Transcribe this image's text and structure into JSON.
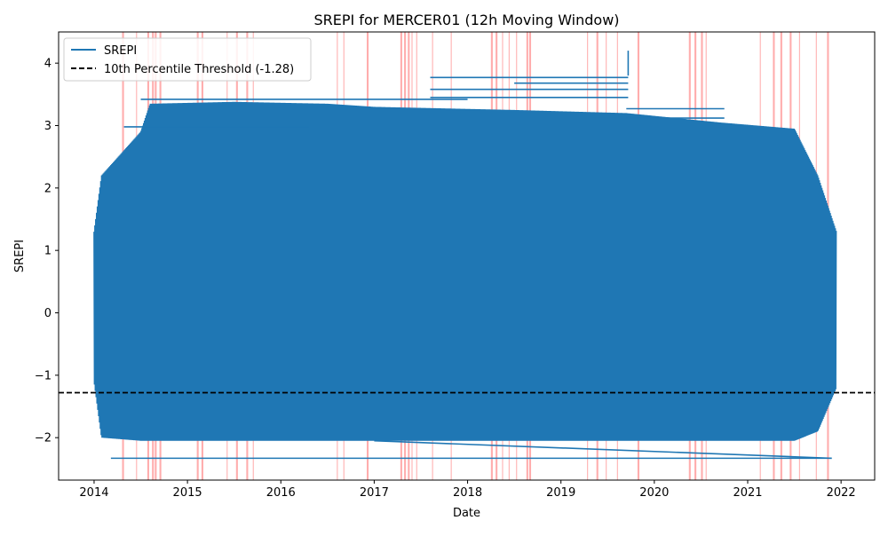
{
  "chart_data": {
    "type": "line",
    "title": "SREPI for MERCER01 (12h Moving Window)",
    "xlabel": "Date",
    "ylabel": "SREPI",
    "xlim": [
      2013.62,
      2022.36
    ],
    "ylim": [
      -2.68,
      4.5
    ],
    "x_ticks": [
      2014,
      2015,
      2016,
      2017,
      2018,
      2019,
      2020,
      2021,
      2022
    ],
    "x_tick_labels": [
      "2014",
      "2015",
      "2016",
      "2017",
      "2018",
      "2019",
      "2020",
      "2021",
      "2022"
    ],
    "y_ticks": [
      -2,
      -1,
      0,
      1,
      2,
      3,
      4
    ],
    "y_tick_labels": [
      "−2",
      "−1",
      "0",
      "1",
      "2",
      "3",
      "4"
    ],
    "grid": false,
    "legend": {
      "placement": "upper-left",
      "entries": [
        "SREPI",
        "10th Percentile Threshold (-1.28)"
      ]
    },
    "colors": {
      "series": "#1f77b4",
      "threshold": "#000000",
      "drought_band": "#ff0000"
    },
    "series": [
      {
        "name": "SREPI",
        "envelope": [
          {
            "x": 2014.0,
            "low": -1.1,
            "high": 1.3
          },
          {
            "x": 2014.08,
            "low": -2.0,
            "high": 2.2
          },
          {
            "x": 2014.5,
            "low": -2.05,
            "high": 2.9
          },
          {
            "x": 2014.6,
            "low": -2.05,
            "high": 3.35
          },
          {
            "x": 2015.5,
            "low": -2.05,
            "high": 3.38
          },
          {
            "x": 2016.5,
            "low": -2.05,
            "high": 3.35
          },
          {
            "x": 2017.0,
            "low": -2.05,
            "high": 3.3
          },
          {
            "x": 2018.5,
            "low": -2.05,
            "high": 3.25
          },
          {
            "x": 2019.7,
            "low": -2.05,
            "high": 3.2
          },
          {
            "x": 2020.7,
            "low": -2.05,
            "high": 3.05
          },
          {
            "x": 2021.5,
            "low": -2.05,
            "high": 2.95
          },
          {
            "x": 2021.75,
            "low": -1.9,
            "high": 2.2
          },
          {
            "x": 2021.95,
            "low": -1.2,
            "high": 1.3
          }
        ],
        "horizontal_lines": [
          {
            "x1": 2017.6,
            "x2": 2019.72,
            "y": 3.77
          },
          {
            "x1": 2017.6,
            "x2": 2019.72,
            "y": 3.58
          },
          {
            "x1": 2018.5,
            "x2": 2019.72,
            "y": 3.68
          },
          {
            "x1": 2017.6,
            "x2": 2019.72,
            "y": 3.45
          },
          {
            "x1": 2014.5,
            "x2": 2018.0,
            "y": 3.42
          },
          {
            "x1": 2019.7,
            "x2": 2020.75,
            "y": 3.27
          },
          {
            "x1": 2019.7,
            "x2": 2020.75,
            "y": 3.12
          },
          {
            "x1": 2014.32,
            "x2": 2016.3,
            "y": 2.98
          },
          {
            "x1": 2014.18,
            "x2": 2021.9,
            "y": -2.33
          }
        ],
        "extra_segments": [
          {
            "x1": 2019.72,
            "y1": 3.8,
            "x2": 2019.72,
            "y2": 4.2
          },
          {
            "x1": 2017.0,
            "y1": -2.05,
            "x2": 2021.9,
            "y2": -2.33
          }
        ]
      },
      {
        "name": "10th Percentile Threshold (-1.28)",
        "style": "dashed",
        "y": -1.28
      }
    ],
    "shaded_periods": [
      {
        "x": 2014.3,
        "width": 0.02
      },
      {
        "x": 2014.45,
        "width": 0.01
      },
      {
        "x": 2014.57,
        "width": 0.02
      },
      {
        "x": 2014.62,
        "width": 0.02
      },
      {
        "x": 2014.65,
        "width": 0.02
      },
      {
        "x": 2014.7,
        "width": 0.02
      },
      {
        "x": 2015.1,
        "width": 0.02
      },
      {
        "x": 2015.15,
        "width": 0.02
      },
      {
        "x": 2015.42,
        "width": 0.01
      },
      {
        "x": 2015.52,
        "width": 0.02
      },
      {
        "x": 2015.63,
        "width": 0.02
      },
      {
        "x": 2015.7,
        "width": 0.01
      },
      {
        "x": 2016.6,
        "width": 0.01
      },
      {
        "x": 2016.67,
        "width": 0.01
      },
      {
        "x": 2016.92,
        "width": 0.02
      },
      {
        "x": 2017.28,
        "width": 0.02
      },
      {
        "x": 2017.32,
        "width": 0.02
      },
      {
        "x": 2017.36,
        "width": 0.02
      },
      {
        "x": 2017.4,
        "width": 0.01
      },
      {
        "x": 2017.45,
        "width": 0.01
      },
      {
        "x": 2017.62,
        "width": 0.01
      },
      {
        "x": 2017.82,
        "width": 0.01
      },
      {
        "x": 2018.25,
        "width": 0.02
      },
      {
        "x": 2018.3,
        "width": 0.02
      },
      {
        "x": 2018.37,
        "width": 0.01
      },
      {
        "x": 2018.44,
        "width": 0.01
      },
      {
        "x": 2018.52,
        "width": 0.01
      },
      {
        "x": 2018.63,
        "width": 0.02
      },
      {
        "x": 2018.66,
        "width": 0.02
      },
      {
        "x": 2019.28,
        "width": 0.01
      },
      {
        "x": 2019.38,
        "width": 0.02
      },
      {
        "x": 2019.48,
        "width": 0.01
      },
      {
        "x": 2019.6,
        "width": 0.01
      },
      {
        "x": 2019.82,
        "width": 0.02
      },
      {
        "x": 2020.37,
        "width": 0.02
      },
      {
        "x": 2020.43,
        "width": 0.02
      },
      {
        "x": 2020.5,
        "width": 0.02
      },
      {
        "x": 2020.55,
        "width": 0.01
      },
      {
        "x": 2021.13,
        "width": 0.01
      },
      {
        "x": 2021.27,
        "width": 0.02
      },
      {
        "x": 2021.35,
        "width": 0.02
      },
      {
        "x": 2021.45,
        "width": 0.02
      },
      {
        "x": 2021.55,
        "width": 0.01
      },
      {
        "x": 2021.73,
        "width": 0.01
      },
      {
        "x": 2021.85,
        "width": 0.02
      }
    ]
  }
}
